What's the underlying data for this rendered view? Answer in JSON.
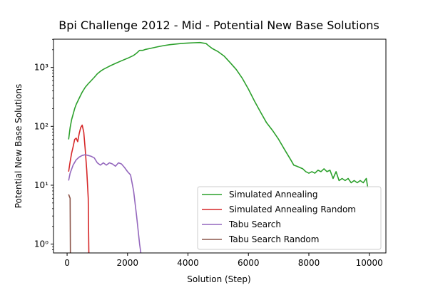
{
  "chart_data": {
    "type": "line",
    "title": "Bpi Challenge 2012 - Mid - Potential New Base Solutions",
    "xlabel": "Solution (Step)",
    "ylabel": "Potential New Base Solutions",
    "xlim": [
      -450,
      10550
    ],
    "ylim_log10": [
      -0.15,
      3.48
    ],
    "yscale": "log",
    "x_ticks": [
      0,
      2000,
      4000,
      6000,
      8000,
      10000
    ],
    "x_tick_labels": [
      "0",
      "2000",
      "4000",
      "6000",
      "8000",
      "10000"
    ],
    "y_ticks": [
      1,
      10,
      100,
      1000
    ],
    "y_tick_labels": [
      "10⁰",
      "10¹",
      "10²",
      "10³"
    ],
    "grid": false,
    "legend_position": "lower-right",
    "series": [
      {
        "name": "Simulated Annealing",
        "color": "#2ca02c",
        "points": [
          [
            50,
            60
          ],
          [
            100,
            95
          ],
          [
            150,
            130
          ],
          [
            200,
            160
          ],
          [
            250,
            200
          ],
          [
            300,
            235
          ],
          [
            400,
            300
          ],
          [
            500,
            380
          ],
          [
            600,
            460
          ],
          [
            700,
            530
          ],
          [
            800,
            600
          ],
          [
            900,
            680
          ],
          [
            1000,
            780
          ],
          [
            1100,
            860
          ],
          [
            1200,
            930
          ],
          [
            1400,
            1050
          ],
          [
            1600,
            1170
          ],
          [
            1800,
            1300
          ],
          [
            2000,
            1430
          ],
          [
            2200,
            1600
          ],
          [
            2300,
            1750
          ],
          [
            2400,
            1950
          ],
          [
            2500,
            1950
          ],
          [
            2600,
            2030
          ],
          [
            2800,
            2130
          ],
          [
            3000,
            2250
          ],
          [
            3200,
            2350
          ],
          [
            3400,
            2440
          ],
          [
            3600,
            2500
          ],
          [
            3800,
            2560
          ],
          [
            4000,
            2600
          ],
          [
            4200,
            2630
          ],
          [
            4400,
            2650
          ],
          [
            4500,
            2600
          ],
          [
            4600,
            2550
          ],
          [
            4700,
            2300
          ],
          [
            4800,
            2100
          ],
          [
            5000,
            1850
          ],
          [
            5200,
            1550
          ],
          [
            5400,
            1200
          ],
          [
            5600,
            920
          ],
          [
            5800,
            650
          ],
          [
            6000,
            430
          ],
          [
            6200,
            270
          ],
          [
            6400,
            175
          ],
          [
            6600,
            115
          ],
          [
            6800,
            85
          ],
          [
            7000,
            60
          ],
          [
            7200,
            40
          ],
          [
            7400,
            27
          ],
          [
            7500,
            22
          ],
          [
            7600,
            21
          ],
          [
            7700,
            20
          ],
          [
            7800,
            19
          ],
          [
            7900,
            17
          ],
          [
            8000,
            16
          ],
          [
            8100,
            17
          ],
          [
            8200,
            16
          ],
          [
            8300,
            18
          ],
          [
            8400,
            17
          ],
          [
            8500,
            19
          ],
          [
            8600,
            17
          ],
          [
            8700,
            18
          ],
          [
            8800,
            13
          ],
          [
            8900,
            17
          ],
          [
            9000,
            12
          ],
          [
            9100,
            13
          ],
          [
            9200,
            12
          ],
          [
            9300,
            13
          ],
          [
            9400,
            11
          ],
          [
            9500,
            12
          ],
          [
            9600,
            11
          ],
          [
            9700,
            12
          ],
          [
            9800,
            11
          ],
          [
            9900,
            13
          ],
          [
            9950,
            9
          ]
        ]
      },
      {
        "name": "Simulated Annealing Random",
        "color": "#d62728",
        "points": [
          [
            50,
            17
          ],
          [
            100,
            25
          ],
          [
            150,
            35
          ],
          [
            200,
            45
          ],
          [
            250,
            60
          ],
          [
            300,
            63
          ],
          [
            350,
            55
          ],
          [
            400,
            75
          ],
          [
            450,
            95
          ],
          [
            500,
            105
          ],
          [
            550,
            80
          ],
          [
            600,
            40
          ],
          [
            650,
            18
          ],
          [
            700,
            6
          ],
          [
            720,
            0.65
          ]
        ]
      },
      {
        "name": "Tabu Search",
        "color": "#9467bd",
        "points": [
          [
            50,
            12
          ],
          [
            100,
            16
          ],
          [
            200,
            22
          ],
          [
            300,
            27
          ],
          [
            400,
            30
          ],
          [
            500,
            32
          ],
          [
            600,
            33
          ],
          [
            700,
            32
          ],
          [
            800,
            31
          ],
          [
            900,
            29
          ],
          [
            1000,
            24
          ],
          [
            1100,
            22
          ],
          [
            1200,
            24
          ],
          [
            1300,
            22
          ],
          [
            1400,
            24
          ],
          [
            1500,
            23
          ],
          [
            1600,
            21
          ],
          [
            1700,
            24
          ],
          [
            1800,
            23
          ],
          [
            1900,
            20
          ],
          [
            2000,
            17
          ],
          [
            2100,
            15
          ],
          [
            2200,
            8
          ],
          [
            2300,
            3
          ],
          [
            2400,
            1
          ],
          [
            2450,
            0.65
          ]
        ]
      },
      {
        "name": "Tabu Search Random",
        "color": "#8c564b",
        "points": [
          [
            50,
            7
          ],
          [
            100,
            6
          ],
          [
            110,
            0.65
          ]
        ]
      }
    ]
  }
}
